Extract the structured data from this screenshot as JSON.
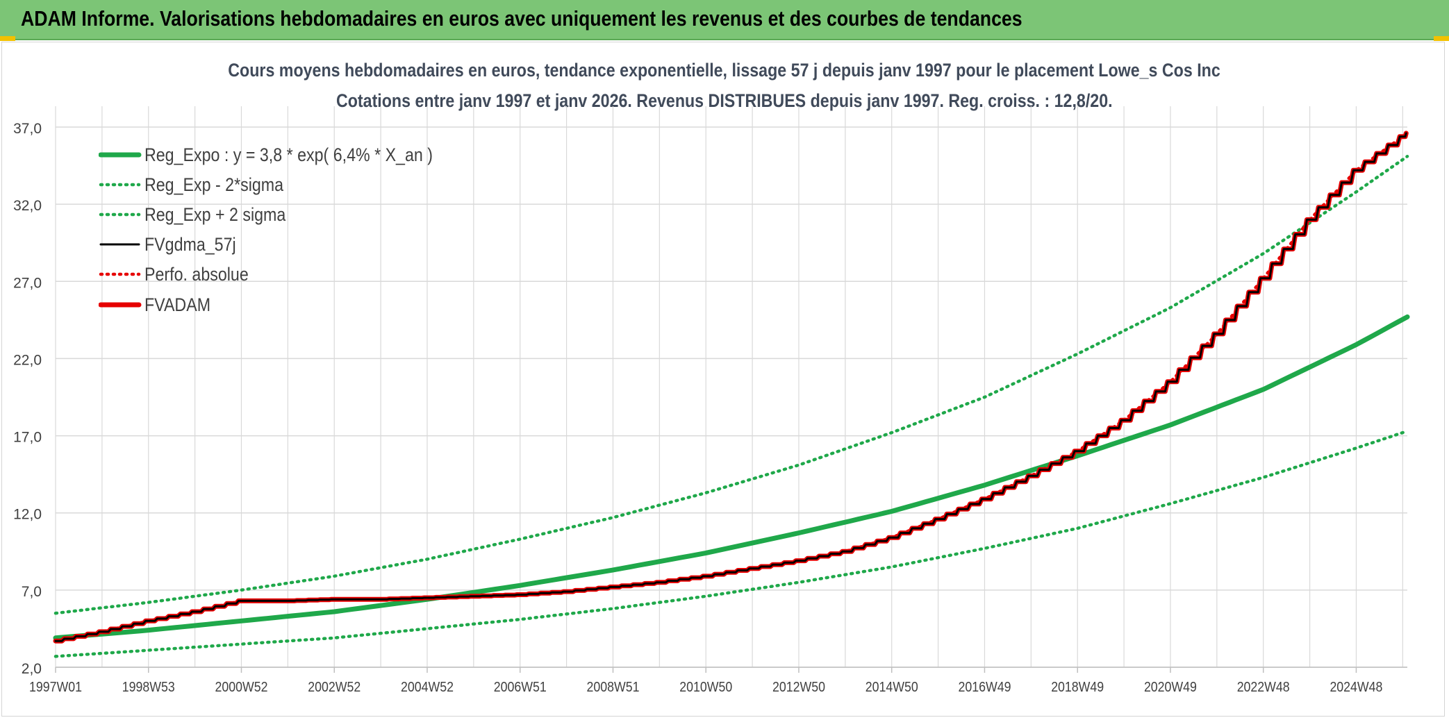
{
  "banner": {
    "title": "ADAM Informe. Valorisations hebdomadaires en euros avec uniquement les revenus et des courbes de tendances"
  },
  "colors": {
    "banner_bg": "#7cc576",
    "green": "#1fa84a",
    "red": "#e60000",
    "black": "#000000",
    "grid": "#d9d9d9",
    "title_text": "#404a5a"
  },
  "chart_data": {
    "type": "line",
    "title": "Cours moyens hebdomadaires en euros, tendance exponentielle, lissage 57 j depuis janv 1997 pour le placement Lowe_s Cos Inc",
    "subtitle": "Cotations entre janv 1997 et janv 2026. Revenus DISTRIBUES depuis janv 1997. Reg. croiss. : 12,8/20.",
    "xlabel": "",
    "ylabel": "",
    "ylim": [
      2.0,
      37.0
    ],
    "xlim": [
      1997.0,
      2026.1
    ],
    "y_ticks": [
      "2,0",
      "7,0",
      "12,0",
      "17,0",
      "22,0",
      "27,0",
      "32,0",
      "37,0"
    ],
    "x_ticks": [
      "1997W01",
      "1998W53",
      "2000W52",
      "2002W52",
      "2004W52",
      "2006W51",
      "2008W51",
      "2010W50",
      "2012W50",
      "2014W50",
      "2016W49",
      "2018W49",
      "2020W49",
      "2022W48",
      "2024W48"
    ],
    "grid": true,
    "legend_position": "top-left",
    "series": [
      {
        "name": "Reg_Expo : y = 3,8 * exp( 6,4% *  X_an )",
        "style": "solid-thick",
        "color": "#1fa84a",
        "x": [
          1997,
          1999,
          2001,
          2003,
          2005,
          2007,
          2009,
          2011,
          2013,
          2015,
          2017,
          2019,
          2021,
          2023,
          2025,
          2026.1
        ],
        "y": [
          3.9,
          4.4,
          5.0,
          5.6,
          6.4,
          7.3,
          8.3,
          9.4,
          10.7,
          12.1,
          13.8,
          15.7,
          17.7,
          20.0,
          22.9,
          24.7
        ]
      },
      {
        "name": "Reg_Exp - 2*sigma",
        "style": "dotted",
        "color": "#1fa84a",
        "x": [
          1997,
          1999,
          2001,
          2003,
          2005,
          2007,
          2009,
          2011,
          2013,
          2015,
          2017,
          2019,
          2021,
          2023,
          2025,
          2026.1
        ],
        "y": [
          2.7,
          3.1,
          3.5,
          3.9,
          4.5,
          5.1,
          5.8,
          6.6,
          7.5,
          8.5,
          9.7,
          11.0,
          12.6,
          14.3,
          16.2,
          17.3
        ]
      },
      {
        "name": "Reg_Exp + 2 sigma",
        "style": "dotted",
        "color": "#1fa84a",
        "x": [
          1997,
          1999,
          2001,
          2003,
          2005,
          2007,
          2009,
          2011,
          2013,
          2015,
          2017,
          2019,
          2021,
          2023,
          2025,
          2026.1
        ],
        "y": [
          5.5,
          6.2,
          7.0,
          7.9,
          9.0,
          10.3,
          11.7,
          13.3,
          15.1,
          17.2,
          19.5,
          22.3,
          25.3,
          28.8,
          32.8,
          35.1
        ]
      },
      {
        "name": "FVgdma_57j",
        "style": "solid-thin",
        "color": "#000000",
        "x": [
          1997,
          1998,
          1999,
          2000,
          2001,
          2002,
          2003,
          2004,
          2005,
          2006,
          2007,
          2008,
          2009,
          2010,
          2011,
          2012,
          2013,
          2014,
          2015,
          2016,
          2017,
          2018,
          2019,
          2020,
          2021,
          2022,
          2023,
          2024,
          2025,
          2026.1
        ],
        "y": [
          3.7,
          4.3,
          5.0,
          5.6,
          6.3,
          6.3,
          6.4,
          6.4,
          6.5,
          6.6,
          6.7,
          6.9,
          7.2,
          7.5,
          7.9,
          8.4,
          8.9,
          9.5,
          10.4,
          11.6,
          12.9,
          14.4,
          16.0,
          18.0,
          20.5,
          23.6,
          27.2,
          31.0,
          34.2,
          36.6
        ]
      },
      {
        "name": "Perfo. absolue",
        "style": "dotted",
        "color": "#e60000",
        "x": [
          1997,
          1998,
          1999,
          2000,
          2001,
          2002,
          2003,
          2004,
          2005,
          2006,
          2007,
          2008,
          2009,
          2010,
          2011,
          2012,
          2013,
          2014,
          2015,
          2016,
          2017,
          2018,
          2019,
          2020,
          2021,
          2022,
          2023,
          2024,
          2025,
          2026.1
        ],
        "y": [
          3.7,
          4.3,
          5.0,
          5.6,
          6.3,
          6.3,
          6.4,
          6.4,
          6.5,
          6.6,
          6.7,
          6.9,
          7.2,
          7.5,
          7.9,
          8.4,
          8.9,
          9.5,
          10.4,
          11.6,
          12.9,
          14.4,
          16.0,
          18.0,
          20.5,
          23.6,
          27.2,
          31.0,
          34.2,
          36.6
        ]
      },
      {
        "name": "FVADAM",
        "style": "solid-thick",
        "color": "#e60000",
        "x": [
          1997,
          1998,
          1999,
          2000,
          2001,
          2002,
          2003,
          2004,
          2005,
          2006,
          2007,
          2008,
          2009,
          2010,
          2011,
          2012,
          2013,
          2014,
          2015,
          2016,
          2017,
          2018,
          2019,
          2020,
          2021,
          2022,
          2023,
          2024,
          2025,
          2026.1
        ],
        "y": [
          3.7,
          4.3,
          5.0,
          5.6,
          6.3,
          6.3,
          6.4,
          6.4,
          6.5,
          6.6,
          6.7,
          6.9,
          7.2,
          7.5,
          7.9,
          8.4,
          8.9,
          9.5,
          10.4,
          11.6,
          12.9,
          14.4,
          16.0,
          18.0,
          20.5,
          23.6,
          27.2,
          31.0,
          34.2,
          36.6
        ]
      }
    ]
  }
}
